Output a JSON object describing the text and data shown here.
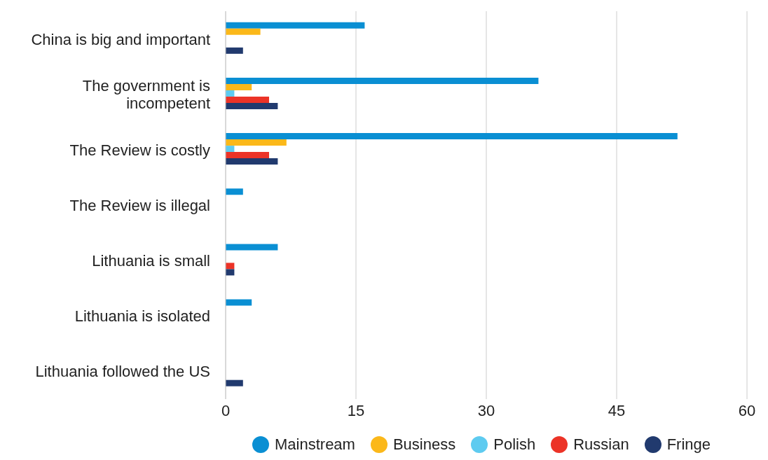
{
  "chart_data": {
    "type": "bar",
    "orientation": "horizontal",
    "categories": [
      "China is big and important",
      "The government is incompetent",
      "The Review is costly",
      "The Review is illegal",
      "Lithuania is small",
      "Lithuania is isolated",
      "Lithuania followed the US"
    ],
    "series": [
      {
        "name": "Mainstream",
        "color": "#0a8fd3",
        "values": [
          16,
          36,
          52,
          2,
          6,
          3,
          0
        ]
      },
      {
        "name": "Business",
        "color": "#fbb81a",
        "values": [
          4,
          3,
          7,
          0,
          0,
          0,
          0
        ]
      },
      {
        "name": "Polish",
        "color": "#5ecbf0",
        "values": [
          0,
          1,
          1,
          0,
          0,
          0,
          0
        ]
      },
      {
        "name": "Russian",
        "color": "#ec3327",
        "values": [
          0,
          5,
          5,
          0,
          1,
          0,
          0
        ]
      },
      {
        "name": "Fringe",
        "color": "#213a6e",
        "values": [
          2,
          6,
          6,
          0,
          1,
          0,
          2
        ]
      }
    ],
    "xlim": [
      0,
      60
    ],
    "xticks": [
      0,
      15,
      30,
      45,
      60
    ],
    "grid": "x",
    "legend": "bottom"
  }
}
